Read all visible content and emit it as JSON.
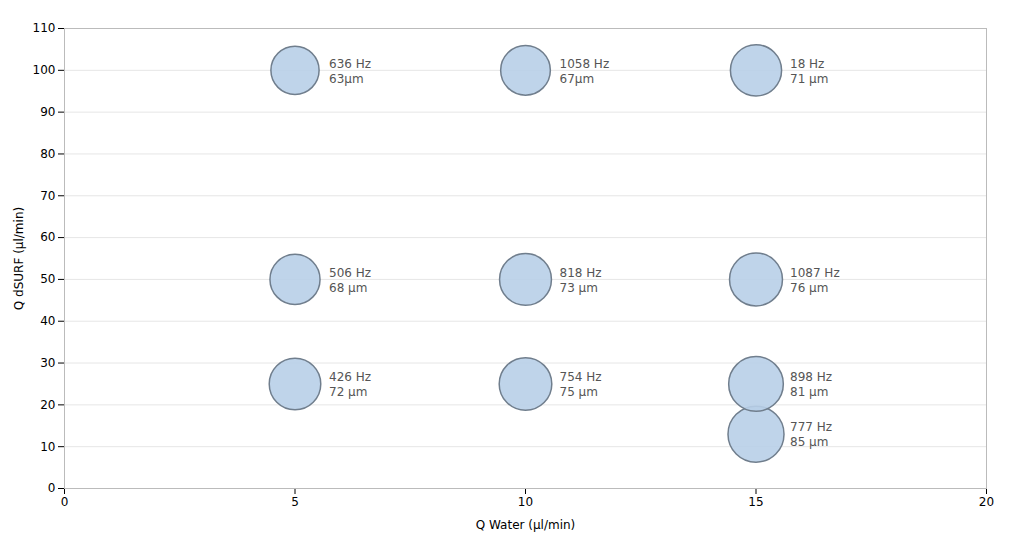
{
  "chart_data": {
    "type": "bubble",
    "xlabel": "Q Water (μl/min)",
    "ylabel": "Q dSURF (μl/min)",
    "x": [
      5,
      10,
      15,
      5,
      10,
      15,
      5,
      10,
      15,
      15
    ],
    "values": [
      100,
      100,
      100,
      50,
      50,
      50,
      25,
      25,
      25,
      13
    ],
    "sizes": [
      63,
      67,
      71,
      68,
      73,
      76,
      72,
      75,
      81,
      85
    ],
    "annotations": [
      {
        "x": 5,
        "y": 100,
        "text": "636 Hz\n63μm"
      },
      {
        "x": 10,
        "y": 100,
        "text": "1058 Hz\n67μm"
      },
      {
        "x": 15,
        "y": 100,
        "text": "18 Hz\n71 μm"
      },
      {
        "x": 5,
        "y": 50,
        "text": "506 Hz\n68 μm"
      },
      {
        "x": 10,
        "y": 50,
        "text": "818 Hz\n73 μm"
      },
      {
        "x": 15,
        "y": 50,
        "text": "1087 Hz\n76 μm"
      },
      {
        "x": 5,
        "y": 25,
        "text": "426 Hz\n72 μm"
      },
      {
        "x": 10,
        "y": 25,
        "text": "754 Hz\n75 μm"
      },
      {
        "x": 15,
        "y": 25,
        "text": "898 Hz\n81 μm"
      },
      {
        "x": 15,
        "y": 13,
        "text": "777 Hz\n85 μm"
      }
    ],
    "color": "#b8cfe8",
    "xlim": [
      0,
      20
    ],
    "ylim": [
      0,
      110
    ],
    "xticks": [
      0,
      5,
      10,
      15,
      20
    ],
    "yticks": [
      0,
      10,
      20,
      30,
      40,
      50,
      60,
      70,
      80,
      90,
      100,
      110
    ],
    "grid": "y"
  }
}
